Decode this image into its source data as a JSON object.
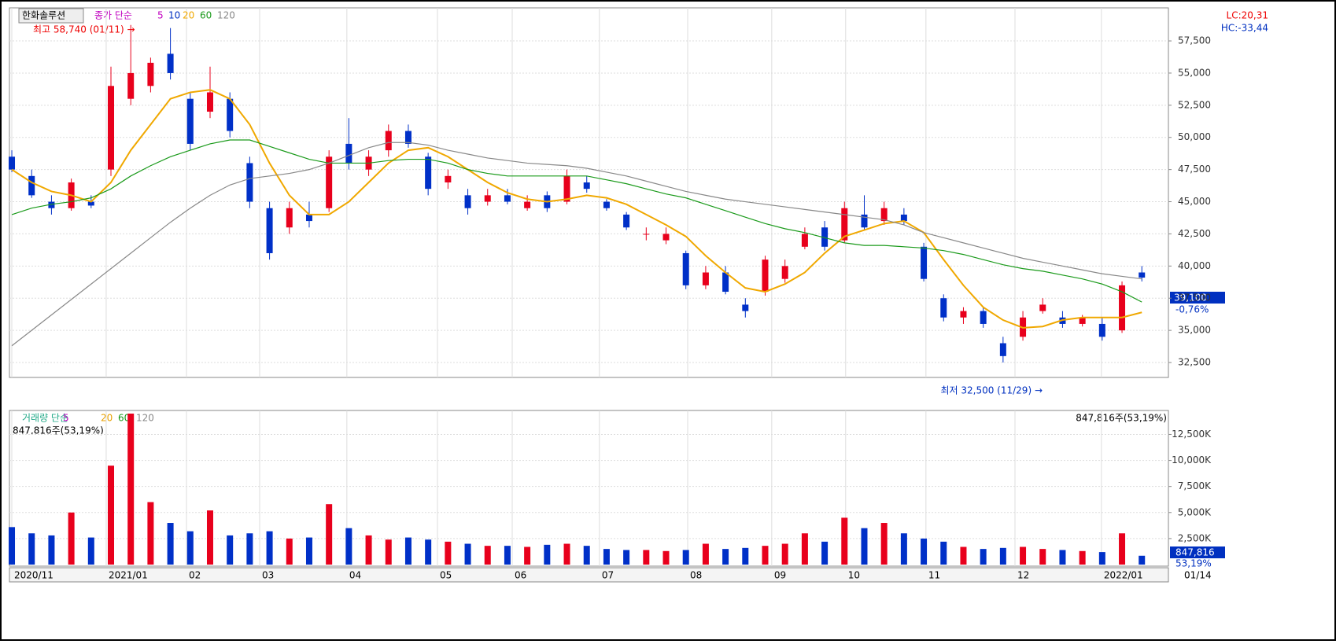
{
  "price_panel": {
    "stock_name": "한화솔루션",
    "legend_title": "종가 단순",
    "ma_legend": [
      "5",
      "10"
    ],
    "high_annotation": "최고 58,740 (01/11) →",
    "low_annotation": "최저 32,500 (11/29) →",
    "lc": "LC:20,31",
    "hc": "HC:-33,44",
    "current_price": "39,100",
    "change_rate": "-0,76%"
  },
  "volume_panel": {
    "legend_title": "거래량 단순",
    "ma_legend": [
      "5",
      "20",
      "60",
      "120"
    ],
    "info": "847,816주(53,19%)",
    "current_volume_label": "847,816",
    "ratio": "53,19%"
  },
  "time_axis": {
    "last_date": "01/14"
  },
  "chart_data": [
    {
      "type": "candlestick",
      "up_color": "#e8001c",
      "down_color": "#0030c8",
      "open": [
        48500,
        47000,
        45000,
        44500,
        45000,
        47500,
        53000,
        54000,
        56500,
        53000,
        52000,
        53000,
        48000,
        44500,
        43000,
        44000,
        44500,
        49500,
        47500,
        49000,
        50500,
        48500,
        46500,
        45500,
        45000,
        45500,
        44500,
        45500,
        45000,
        46500,
        45000,
        44000,
        42500,
        42000,
        41000,
        38500,
        39500,
        37000,
        38000,
        39000,
        41500,
        43000,
        42000,
        44000,
        43500,
        44000,
        41500,
        37500,
        36000,
        36500,
        34000,
        34500,
        36500,
        36000,
        35500,
        35500,
        35000,
        39500
      ],
      "high": [
        49000,
        47500,
        45500,
        46800,
        45500,
        55500,
        58740,
        56200,
        58500,
        53500,
        55500,
        53500,
        48500,
        45000,
        45000,
        45000,
        49000,
        51500,
        49000,
        51000,
        51000,
        48800,
        47500,
        46000,
        46000,
        46000,
        45500,
        45800,
        47500,
        47000,
        45200,
        44200,
        43000,
        43000,
        41200,
        40000,
        40000,
        37500,
        40800,
        40500,
        43000,
        43500,
        45000,
        45500,
        45000,
        44500,
        41800,
        37800,
        36800,
        36800,
        34500,
        36500,
        37500,
        36500,
        36200,
        36000,
        38800,
        40000
      ],
      "low": [
        47300,
        45300,
        44000,
        44300,
        44500,
        47000,
        52500,
        53500,
        54500,
        49000,
        51500,
        50000,
        44500,
        40500,
        42500,
        43000,
        44200,
        47500,
        47000,
        48500,
        49200,
        45500,
        46000,
        44000,
        44700,
        44800,
        44300,
        44200,
        44800,
        45700,
        44300,
        42800,
        42000,
        41700,
        38200,
        38200,
        37800,
        36000,
        37700,
        38700,
        41300,
        41200,
        41800,
        42800,
        43200,
        43200,
        38800,
        35700,
        35500,
        35200,
        32500,
        34200,
        36300,
        35200,
        35300,
        34200,
        34800,
        38800
      ],
      "close": [
        47500,
        45500,
        44500,
        46500,
        44700,
        54000,
        55000,
        55800,
        55000,
        49500,
        53500,
        50500,
        45000,
        41000,
        44500,
        43500,
        48500,
        48000,
        48500,
        50500,
        49500,
        46000,
        47000,
        44500,
        45500,
        45000,
        45000,
        44500,
        47000,
        46000,
        44500,
        43000,
        42500,
        42500,
        38500,
        39500,
        38000,
        36500,
        40500,
        40000,
        42500,
        41500,
        44500,
        43000,
        44500,
        43500,
        39000,
        36000,
        36500,
        35500,
        33000,
        36000,
        37000,
        35500,
        36000,
        34500,
        38500,
        39100
      ],
      "series": [
        {
          "name": "20",
          "color": "#f0a800",
          "values": [
            47500,
            46500,
            45800,
            45500,
            45000,
            46500,
            49000,
            51000,
            53000,
            53500,
            53700,
            53000,
            51000,
            48000,
            45500,
            44000,
            44000,
            45000,
            46500,
            48000,
            49000,
            49200,
            48500,
            47500,
            46500,
            45700,
            45200,
            45000,
            45200,
            45500,
            45300,
            44800,
            44000,
            43200,
            42300,
            40800,
            39500,
            38300,
            38000,
            38600,
            39500,
            41000,
            42300,
            42800,
            43300,
            43500,
            42600,
            40500,
            38500,
            36800,
            35800,
            35200,
            35300,
            35800,
            36000,
            36000,
            36000,
            36400
          ]
        },
        {
          "name": "60",
          "color": "#1a9a1a",
          "values": [
            44000,
            44500,
            44800,
            45000,
            45300,
            46000,
            47000,
            47800,
            48500,
            49000,
            49500,
            49800,
            49800,
            49300,
            48800,
            48300,
            48000,
            48000,
            48000,
            48200,
            48300,
            48300,
            48000,
            47500,
            47200,
            47000,
            47000,
            47000,
            47000,
            47000,
            46700,
            46400,
            46000,
            45600,
            45300,
            44800,
            44300,
            43800,
            43300,
            42900,
            42600,
            42200,
            41800,
            41600,
            41600,
            41500,
            41400,
            41200,
            40900,
            40500,
            40100,
            39800,
            39600,
            39300,
            39000,
            38600,
            38000,
            37200
          ]
        },
        {
          "name": "120",
          "color": "#888888",
          "values": [
            33800,
            35000,
            36200,
            37400,
            38600,
            39800,
            41000,
            42200,
            43400,
            44500,
            45500,
            46300,
            46800,
            47000,
            47200,
            47500,
            48000,
            48600,
            49200,
            49600,
            49600,
            49400,
            49000,
            48700,
            48400,
            48200,
            48000,
            47900,
            47800,
            47600,
            47300,
            47000,
            46600,
            46200,
            45800,
            45500,
            45200,
            45000,
            44800,
            44600,
            44400,
            44200,
            44000,
            43800,
            43600,
            43200,
            42600,
            42200,
            41800,
            41400,
            41000,
            40600,
            40300,
            40000,
            39700,
            39400,
            39200,
            39000
          ]
        }
      ],
      "ylim": [
        31340,
        60070
      ],
      "yticks": [
        {
          "value": 32500,
          "label": "32,500"
        },
        {
          "value": 35000,
          "label": "35,000"
        },
        {
          "value": 37500,
          "label": "37,500"
        },
        {
          "value": 40000,
          "label": "40,000"
        },
        {
          "value": 42500,
          "label": "42,500"
        },
        {
          "value": 45000,
          "label": "45,000"
        },
        {
          "value": 47500,
          "label": "47,500"
        },
        {
          "value": 50000,
          "label": "50,000"
        },
        {
          "value": 52500,
          "label": "52,500"
        },
        {
          "value": 55000,
          "label": "55,000"
        },
        {
          "value": 57500,
          "label": "57,500"
        }
      ],
      "xlim": [
        -0.12,
        58.34
      ],
      "xticks": [
        {
          "value": 0,
          "label": "2020/11"
        },
        {
          "value": 4.76,
          "label": "2021/01"
        },
        {
          "value": 8.81,
          "label": "02"
        },
        {
          "value": 12.5,
          "label": "03"
        },
        {
          "value": 16.9,
          "label": "04"
        },
        {
          "value": 21.47,
          "label": "05"
        },
        {
          "value": 25.24,
          "label": "06"
        },
        {
          "value": 29.64,
          "label": "07"
        },
        {
          "value": 34.09,
          "label": "08"
        },
        {
          "value": 38.33,
          "label": "09"
        },
        {
          "value": 42.06,
          "label": "10"
        },
        {
          "value": 46.11,
          "label": "11"
        },
        {
          "value": 50.6,
          "label": "12"
        },
        {
          "value": 54.96,
          "label": "2022/01"
        }
      ],
      "grid": true
    },
    {
      "type": "volume",
      "values": [
        3600,
        3000,
        2800,
        5000,
        2600,
        9500,
        14500,
        6000,
        4000,
        3200,
        5200,
        2800,
        3000,
        3200,
        2500,
        2600,
        5800,
        3500,
        2800,
        2400,
        2600,
        2400,
        2200,
        2000,
        1800,
        1800,
        1700,
        1900,
        2000,
        1800,
        1500,
        1400,
        1400,
        1300,
        1400,
        2000,
        1500,
        1600,
        1800,
        2000,
        3000,
        2200,
        4500,
        3500,
        4000,
        3000,
        2500,
        2200,
        1700,
        1500,
        1600,
        1700,
        1500,
        1400,
        1300,
        1200,
        3000,
        847.816
      ],
      "ylim": [
        0,
        14800
      ],
      "yticks": [
        {
          "value": 2500,
          "label": "2,500K"
        },
        {
          "value": 5000,
          "label": "5,000K"
        },
        {
          "value": 7500,
          "label": "7,500K"
        },
        {
          "value": 10000,
          "label": "10,000K"
        },
        {
          "value": 12500,
          "label": "12,500K"
        }
      ],
      "grid": true
    }
  ]
}
